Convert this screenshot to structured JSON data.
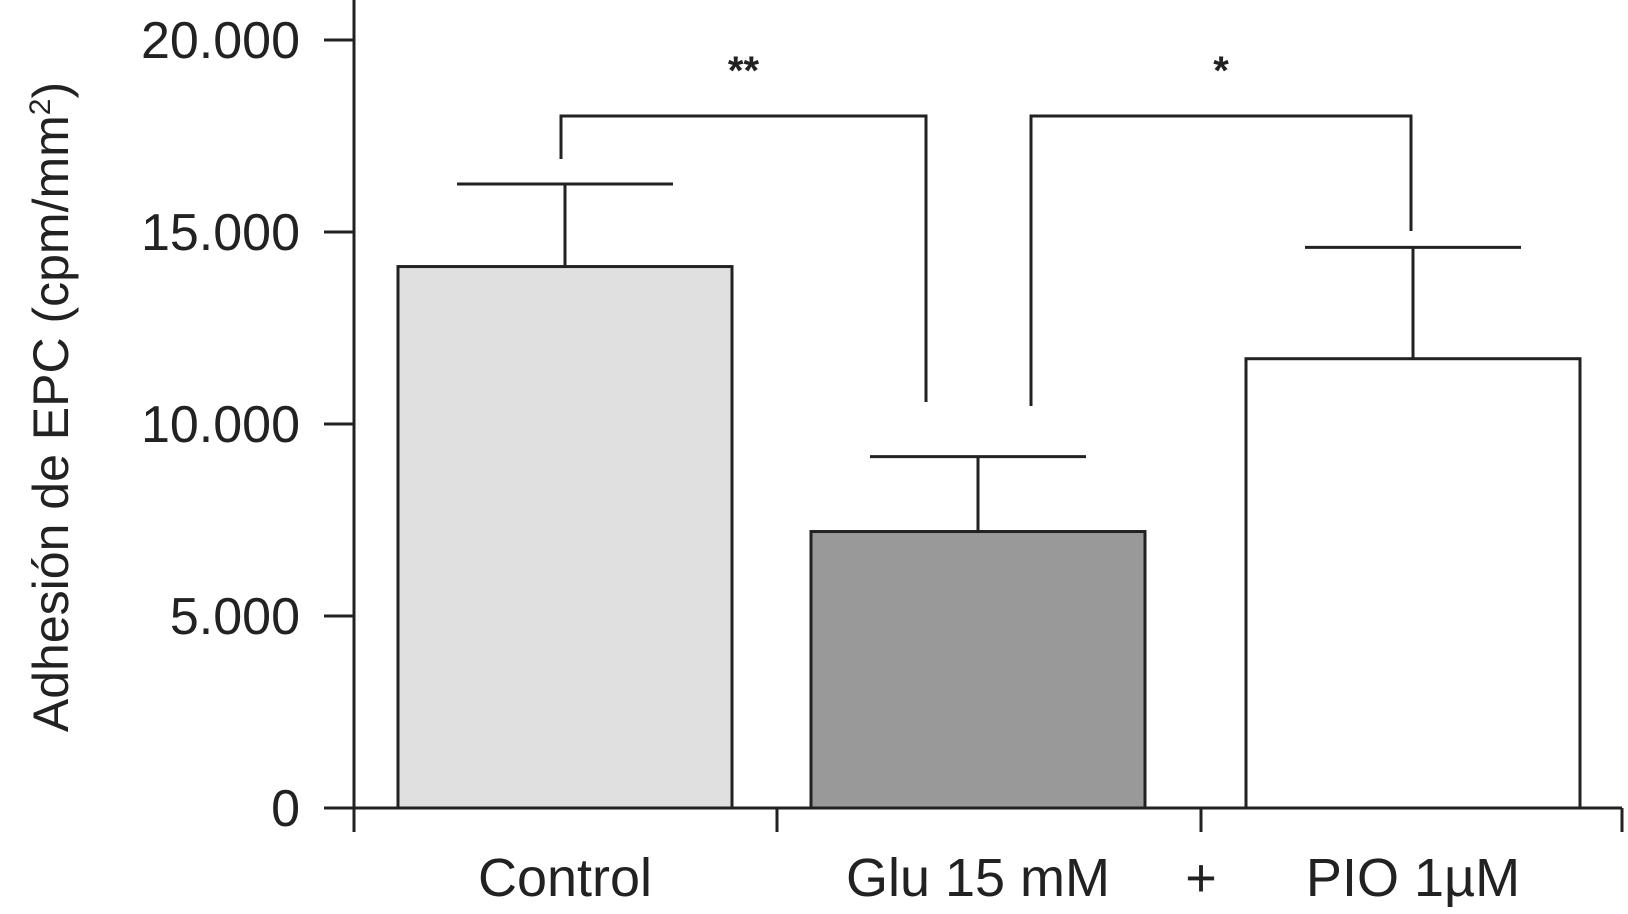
{
  "chart_data": {
    "type": "bar",
    "categories": [
      "Control",
      "Glu 15 mM",
      "PIO 1µM"
    ],
    "values": [
      14100,
      7200,
      11700
    ],
    "errors_upper": [
      2150,
      1950,
      2900
    ],
    "colors": [
      "#e0e0e0",
      "#999999",
      "#ffffff"
    ],
    "ylim": [
      0,
      20000
    ],
    "yticks": [
      0,
      5000,
      10000,
      15000,
      20000
    ],
    "ytick_labels": [
      "0",
      "5.000",
      "10.000",
      "15.000",
      "20.000"
    ],
    "ylabel": "Adhesión de EPC (cpm/mm",
    "ylabel_sup": "2",
    "ylabel_close": ")",
    "plus_label": "+",
    "grid": false,
    "significance": [
      {
        "from": 0,
        "to": 1,
        "label": "**"
      },
      {
        "from": 1,
        "to": 2,
        "label": "*"
      }
    ]
  }
}
